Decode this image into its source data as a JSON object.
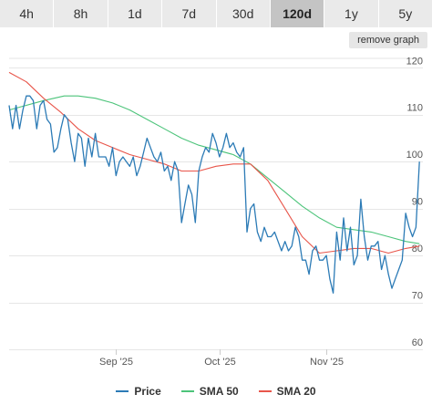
{
  "tabs": {
    "items": [
      {
        "label": "4h",
        "active": false
      },
      {
        "label": "8h",
        "active": false
      },
      {
        "label": "1d",
        "active": false
      },
      {
        "label": "7d",
        "active": false
      },
      {
        "label": "30d",
        "active": false
      },
      {
        "label": "120d",
        "active": true
      },
      {
        "label": "1y",
        "active": false
      },
      {
        "label": "5y",
        "active": false
      }
    ]
  },
  "remove_graph_label": "remove graph",
  "colors": {
    "price": "#2c7bb6",
    "sma50": "#4cc47a",
    "sma20": "#e8554a",
    "grid": "#e6e6e6",
    "axis_text": "#555555"
  },
  "chart_data": {
    "type": "line",
    "ylim": [
      60,
      122
    ],
    "yticks": [
      60,
      70,
      80,
      90,
      100,
      110,
      120
    ],
    "xlim": [
      0,
      120
    ],
    "xticks": [
      {
        "x": 31,
        "label": "Sep '25"
      },
      {
        "x": 61,
        "label": "Oct '25"
      },
      {
        "x": 92,
        "label": "Nov '25"
      }
    ],
    "series": [
      {
        "name": "Price",
        "x": [
          0,
          1,
          2,
          3,
          4,
          5,
          6,
          7,
          8,
          9,
          10,
          11,
          12,
          13,
          14,
          15,
          16,
          17,
          18,
          19,
          20,
          21,
          22,
          23,
          24,
          25,
          26,
          27,
          28,
          29,
          30,
          31,
          32,
          33,
          34,
          35,
          36,
          37,
          38,
          39,
          40,
          41,
          42,
          43,
          44,
          45,
          46,
          47,
          48,
          49,
          50,
          51,
          52,
          53,
          54,
          55,
          56,
          57,
          58,
          59,
          60,
          61,
          62,
          63,
          64,
          65,
          66,
          67,
          68,
          69,
          70,
          71,
          72,
          73,
          74,
          75,
          76,
          77,
          78,
          79,
          80,
          81,
          82,
          83,
          84,
          85,
          86,
          87,
          88,
          89,
          90,
          91,
          92,
          93,
          94,
          95,
          96,
          97,
          98,
          99,
          100,
          101,
          102,
          103,
          104,
          105,
          106,
          107,
          108,
          109,
          110,
          111,
          112,
          113,
          114,
          115,
          116,
          117,
          118,
          119
        ],
        "values": [
          112,
          107,
          112,
          107,
          111,
          114,
          114,
          113,
          107,
          112,
          113,
          109,
          108,
          102,
          103,
          107,
          110,
          109,
          104,
          100,
          106,
          105,
          99,
          105,
          101,
          106,
          101,
          101,
          101,
          99,
          103,
          97,
          100,
          101,
          100,
          99,
          101,
          97,
          99,
          102,
          105,
          103,
          101,
          100,
          102,
          98,
          99,
          96,
          100,
          98,
          87,
          91,
          95,
          93,
          87,
          98,
          101,
          103,
          102,
          106,
          104,
          101,
          103,
          106,
          103,
          104,
          102,
          101,
          103,
          85,
          90,
          91,
          85,
          83,
          86,
          84,
          84,
          85,
          83,
          81,
          83,
          81,
          82,
          86,
          84,
          79,
          79,
          76,
          81,
          82,
          79,
          79,
          80,
          75,
          72,
          85,
          79,
          88,
          81,
          86,
          78,
          80,
          92,
          84,
          79,
          82,
          82,
          83,
          77,
          80,
          76,
          73,
          75,
          77,
          79,
          89,
          86,
          84,
          86,
          100
        ],
        "color": "#2c7bb6"
      },
      {
        "name": "SMA 50",
        "x": [
          0,
          10,
          16,
          20,
          25,
          30,
          35,
          40,
          45,
          50,
          55,
          60,
          65,
          70,
          75,
          80,
          85,
          90,
          95,
          100,
          105,
          110,
          115,
          119
        ],
        "values": [
          111,
          113,
          114,
          114,
          113.5,
          112.5,
          111,
          109,
          107,
          105,
          103.5,
          102.5,
          101.5,
          99.5,
          96.5,
          93.5,
          90.5,
          88,
          86,
          85.5,
          85,
          84,
          83,
          82.5
        ],
        "color": "#4cc47a"
      },
      {
        "name": "SMA 20",
        "x": [
          0,
          5,
          10,
          15,
          20,
          25,
          30,
          35,
          40,
          45,
          50,
          55,
          60,
          65,
          70,
          75,
          80,
          85,
          90,
          95,
          100,
          105,
          110,
          115,
          119
        ],
        "values": [
          119,
          117,
          113.5,
          110.5,
          107,
          104.5,
          103,
          101.5,
          100.5,
          99.5,
          98,
          98,
          99,
          99.5,
          99.5,
          96,
          90,
          84,
          80.5,
          81,
          81.5,
          81.5,
          80.5,
          81.5,
          82
        ]
      }
    ]
  },
  "legend": {
    "price_label": "Price",
    "sma50_label": "SMA 50",
    "sma20_label": "SMA 20"
  }
}
